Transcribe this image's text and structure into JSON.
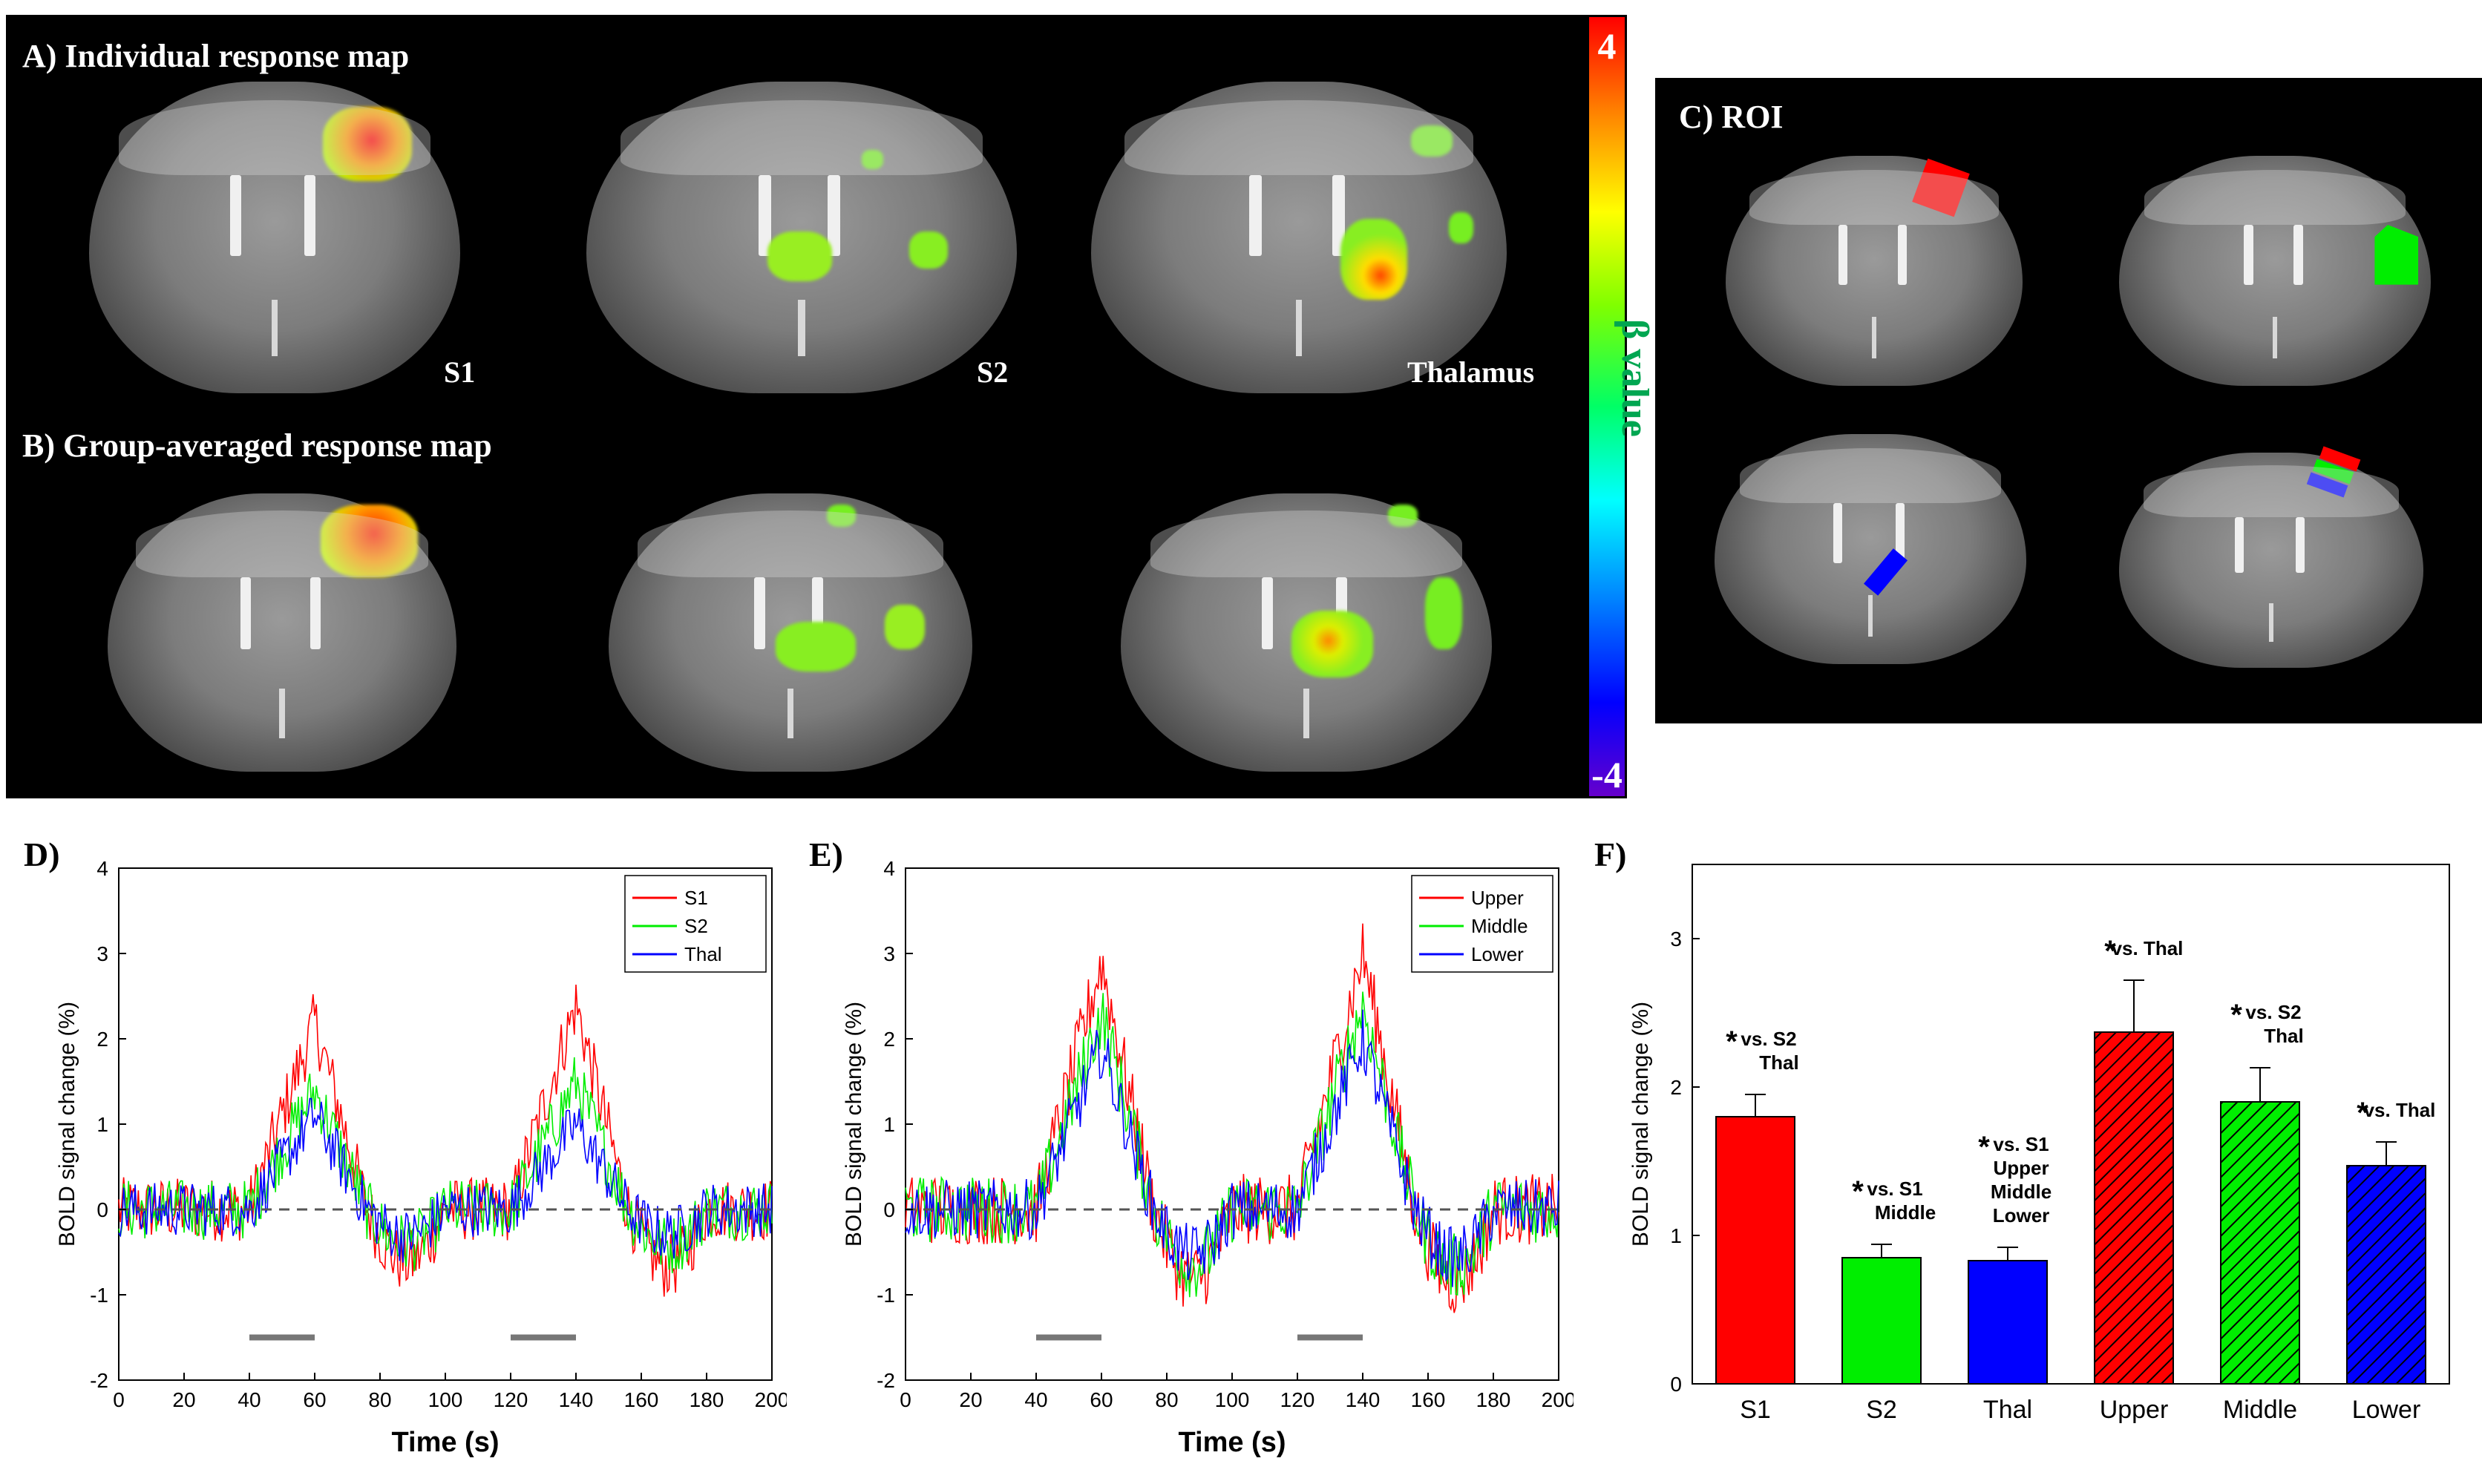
{
  "panels": {
    "A": "A) Individual response map",
    "B": "B) Group-averaged response map",
    "C": "C) ROI",
    "D": "D)",
    "E": "E)",
    "F": "F)"
  },
  "slice_labels": [
    "S1",
    "S2",
    "Thalamus"
  ],
  "colorbar": {
    "max": "4",
    "min": "-4",
    "label": "β value"
  },
  "chart_data": [
    {
      "type": "line",
      "panel": "D",
      "xlabel": "Time (s)",
      "ylabel": "BOLD signal change (%)",
      "xlim": [
        0,
        200
      ],
      "ylim": [
        -2,
        4
      ],
      "xticks": [
        0,
        20,
        40,
        60,
        80,
        100,
        120,
        140,
        160,
        180,
        200
      ],
      "yticks": [
        -2,
        -1,
        0,
        1,
        2,
        3,
        4
      ],
      "stimulus_blocks": [
        [
          40,
          60
        ],
        [
          120,
          140
        ]
      ],
      "legend_position": "top-right",
      "series": [
        {
          "name": "S1",
          "color": "#ff0000",
          "peaks": [
            2.2,
            2.4
          ]
        },
        {
          "name": "S2",
          "color": "#00ee00",
          "peaks": [
            1.4,
            1.5
          ]
        },
        {
          "name": "Thal",
          "color": "#0000ff",
          "peaks": [
            1.1,
            1.0
          ]
        }
      ]
    },
    {
      "type": "line",
      "panel": "E",
      "xlabel": "Time (s)",
      "ylabel": "BOLD signal change (%)",
      "xlim": [
        0,
        200
      ],
      "ylim": [
        -2,
        4
      ],
      "xticks": [
        0,
        20,
        40,
        60,
        80,
        100,
        120,
        140,
        160,
        180,
        200
      ],
      "yticks": [
        -2,
        -1,
        0,
        1,
        2,
        3,
        4
      ],
      "stimulus_blocks": [
        [
          40,
          60
        ],
        [
          120,
          140
        ]
      ],
      "legend_position": "top-right",
      "series": [
        {
          "name": "Upper",
          "color": "#ff0000",
          "peaks": [
            2.9,
            3.0
          ]
        },
        {
          "name": "Middle",
          "color": "#00ee00",
          "peaks": [
            2.3,
            2.4
          ]
        },
        {
          "name": "Lower",
          "color": "#0000ff",
          "peaks": [
            1.9,
            2.0
          ]
        }
      ]
    },
    {
      "type": "bar",
      "panel": "F",
      "ylabel": "BOLD signal change (%)",
      "ylim": [
        0,
        3.5
      ],
      "yticks": [
        0,
        1,
        2,
        3
      ],
      "categories": [
        "S1",
        "S2",
        "Thal",
        "Upper",
        "Middle",
        "Lower"
      ],
      "values": [
        1.8,
        0.85,
        0.83,
        2.37,
        1.9,
        1.47
      ],
      "errors": [
        0.15,
        0.09,
        0.09,
        0.35,
        0.23,
        0.16
      ],
      "colors": [
        "#ff0000",
        "#00ee00",
        "#0000ff",
        "#ff0000",
        "#00ee00",
        "#0000ff"
      ],
      "hatched": [
        false,
        false,
        false,
        true,
        true,
        true
      ],
      "annotations": [
        {
          "star": "*",
          "lines": [
            "vs. S2",
            "Thal"
          ]
        },
        {
          "star": "*",
          "lines": [
            "vs. S1",
            "Middle"
          ]
        },
        {
          "star": "*",
          "lines": [
            "vs. S1",
            "Upper",
            "Middle",
            "Lower"
          ]
        },
        {
          "star": "*",
          "lines": [
            "vs. Thal"
          ]
        },
        {
          "star": "*",
          "lines": [
            "vs. S2",
            "Thal"
          ]
        },
        {
          "star": "*",
          "lines": [
            "vs. Thal"
          ]
        }
      ]
    }
  ]
}
